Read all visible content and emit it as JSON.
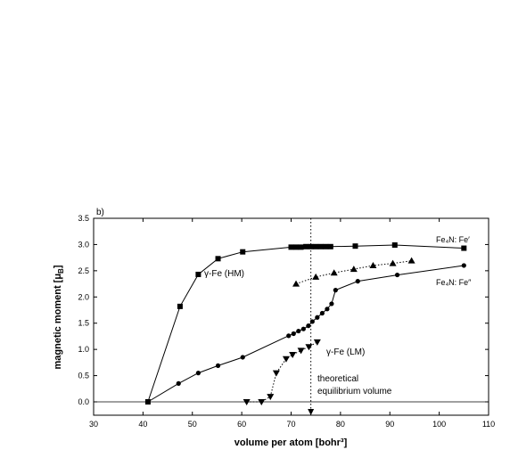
{
  "chart_data": {
    "type": "line",
    "panel_label": "b)",
    "xlabel": "volume per atom [bohr³]",
    "ylabel": "magnetic moment [μ",
    "ylabel_sub": "B",
    "ylabel_end": "]",
    "xlim": [
      30,
      110
    ],
    "ylim": [
      -0.25,
      3.5
    ],
    "x_ticks": [
      30,
      40,
      50,
      60,
      70,
      80,
      90,
      100,
      110
    ],
    "x_tick_labels": [
      "30",
      "40",
      "50",
      "60",
      "70",
      "80",
      "90",
      "100",
      "110"
    ],
    "y_ticks": [
      0.0,
      0.5,
      1.0,
      1.5,
      2.0,
      2.5,
      3.0,
      3.5
    ],
    "y_tick_labels": [
      "0.0",
      "0.5",
      "1.0",
      "1.5",
      "2.0",
      "2.5",
      "3.0",
      "3.5"
    ],
    "zero_line": 0,
    "equilibrium_volume": 74,
    "grid": false,
    "series": [
      {
        "name": "γ-Fe (HM)",
        "marker": "square",
        "line": "solid",
        "x": [
          41,
          47.5,
          51.2,
          55.2,
          60.2,
          70,
          71,
          72,
          73,
          74,
          75,
          76,
          77,
          78,
          83,
          91,
          105
        ],
        "y": [
          0.0,
          1.82,
          2.43,
          2.73,
          2.86,
          2.95,
          2.95,
          2.95,
          2.96,
          2.96,
          2.96,
          2.96,
          2.96,
          2.96,
          2.97,
          2.99,
          2.93
        ]
      },
      {
        "name": "γ-Fe (LM)",
        "marker": "triangle-down",
        "line": "dotted",
        "x": [
          61,
          64,
          65.8,
          67,
          69,
          70.3,
          72,
          73.6,
          75.3
        ],
        "y": [
          0.0,
          0.0,
          0.1,
          0.55,
          0.82,
          0.9,
          0.98,
          1.05,
          1.14
        ]
      },
      {
        "name": "Fe₄N: Fe′",
        "marker": "triangle-up",
        "line": "dotted",
        "x": [
          71,
          75,
          78.7,
          82.7,
          86.6,
          90.6,
          94.4
        ],
        "y": [
          2.25,
          2.38,
          2.46,
          2.53,
          2.6,
          2.64,
          2.69
        ]
      },
      {
        "name": "Fe₄N: Fe″",
        "marker": "circle",
        "line": "solid",
        "x": [
          41,
          47.2,
          51.2,
          55.2,
          60.2,
          69.5,
          70.5,
          71.5,
          72.5,
          73.5,
          74.3,
          75.3,
          76.3,
          77.3,
          78.2,
          79,
          83.5,
          91.5,
          105
        ],
        "y": [
          0.0,
          0.35,
          0.55,
          0.69,
          0.85,
          1.26,
          1.3,
          1.35,
          1.39,
          1.45,
          1.53,
          1.61,
          1.69,
          1.77,
          1.87,
          2.13,
          2.3,
          2.42,
          2.6
        ]
      }
    ],
    "annotations": {
      "hm_label": "γ-Fe (HM)",
      "lm_label": "γ-Fe (LM)",
      "fe1_label": "Fe₄N: Fe′",
      "fe2_label": "Fe₄N: Fe″",
      "eq_line1": "theoretical",
      "eq_line2": "equilibrium volume"
    }
  }
}
